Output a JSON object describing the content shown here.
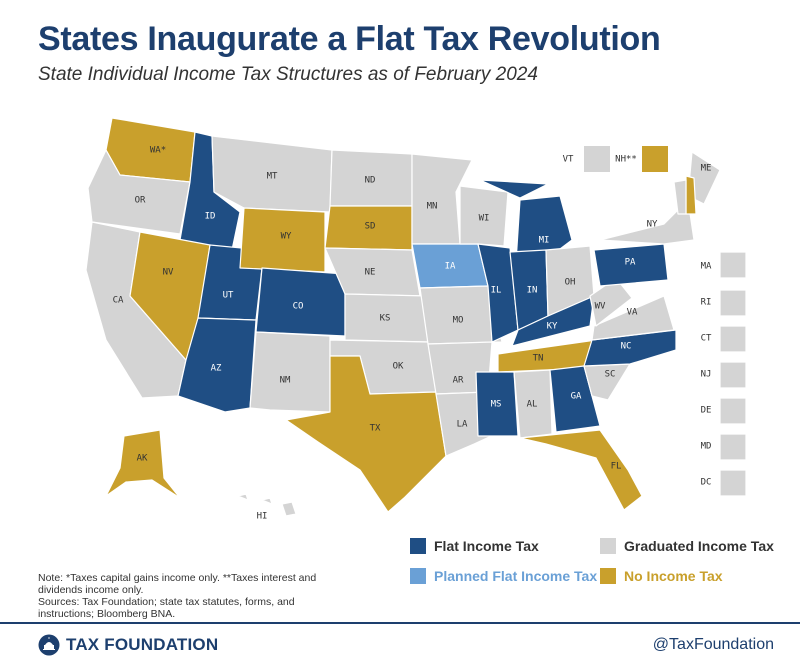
{
  "header": {
    "title": "States Inaugurate a Flat Tax Revolution",
    "subtitle": "State Individual Income Tax Structures as of February 2024"
  },
  "categories": {
    "flat": {
      "label": "Flat Income Tax",
      "color": "#1f4e84"
    },
    "planned": {
      "label": "Planned Flat Income Tax",
      "color": "#6aa0d6"
    },
    "graduated": {
      "label": "Graduated Income Tax",
      "color": "#d4d4d4"
    },
    "none": {
      "label": "No Income Tax",
      "color": "#c9a02c"
    }
  },
  "states": [
    {
      "abbr": "WA*",
      "category": "none"
    },
    {
      "abbr": "OR",
      "category": "graduated"
    },
    {
      "abbr": "CA",
      "category": "graduated"
    },
    {
      "abbr": "ID",
      "category": "flat"
    },
    {
      "abbr": "NV",
      "category": "none"
    },
    {
      "abbr": "UT",
      "category": "flat"
    },
    {
      "abbr": "AZ",
      "category": "flat"
    },
    {
      "abbr": "MT",
      "category": "graduated"
    },
    {
      "abbr": "WY",
      "category": "none"
    },
    {
      "abbr": "CO",
      "category": "flat"
    },
    {
      "abbr": "NM",
      "category": "graduated"
    },
    {
      "abbr": "ND",
      "category": "graduated"
    },
    {
      "abbr": "SD",
      "category": "none"
    },
    {
      "abbr": "NE",
      "category": "graduated"
    },
    {
      "abbr": "KS",
      "category": "graduated"
    },
    {
      "abbr": "OK",
      "category": "graduated"
    },
    {
      "abbr": "TX",
      "category": "none"
    },
    {
      "abbr": "MN",
      "category": "graduated"
    },
    {
      "abbr": "IA",
      "category": "planned"
    },
    {
      "abbr": "MO",
      "category": "graduated"
    },
    {
      "abbr": "AR",
      "category": "graduated"
    },
    {
      "abbr": "LA",
      "category": "graduated"
    },
    {
      "abbr": "WI",
      "category": "graduated"
    },
    {
      "abbr": "IL",
      "category": "flat"
    },
    {
      "abbr": "MI",
      "category": "flat"
    },
    {
      "abbr": "IN",
      "category": "flat"
    },
    {
      "abbr": "OH",
      "category": "graduated"
    },
    {
      "abbr": "KY",
      "category": "flat"
    },
    {
      "abbr": "TN",
      "category": "none"
    },
    {
      "abbr": "MS",
      "category": "flat"
    },
    {
      "abbr": "AL",
      "category": "graduated"
    },
    {
      "abbr": "GA",
      "category": "flat"
    },
    {
      "abbr": "FL",
      "category": "none"
    },
    {
      "abbr": "SC",
      "category": "graduated"
    },
    {
      "abbr": "NC",
      "category": "flat"
    },
    {
      "abbr": "VA",
      "category": "graduated"
    },
    {
      "abbr": "WV",
      "category": "graduated"
    },
    {
      "abbr": "PA",
      "category": "flat"
    },
    {
      "abbr": "NY",
      "category": "graduated"
    },
    {
      "abbr": "ME",
      "category": "graduated"
    },
    {
      "abbr": "NH**",
      "category": "none"
    },
    {
      "abbr": "VT",
      "category": "graduated"
    },
    {
      "abbr": "MA",
      "category": "graduated"
    },
    {
      "abbr": "RI",
      "category": "graduated"
    },
    {
      "abbr": "CT",
      "category": "graduated"
    },
    {
      "abbr": "NJ",
      "category": "graduated"
    },
    {
      "abbr": "DE",
      "category": "graduated"
    },
    {
      "abbr": "MD",
      "category": "graduated"
    },
    {
      "abbr": "DC",
      "category": "graduated"
    },
    {
      "abbr": "AK",
      "category": "none"
    },
    {
      "abbr": "HI",
      "category": "graduated"
    }
  ],
  "note": {
    "line1": "Note: *Taxes capital gains income only. **Taxes interest and dividends income only.",
    "line2": "Sources: Tax Foundation; state tax statutes, forms, and instructions; Bloomberg BNA."
  },
  "footer": {
    "logo_text": "TAX FOUNDATION",
    "logo_icon": "capitol-dome-icon",
    "handle": "@TaxFoundation"
  }
}
